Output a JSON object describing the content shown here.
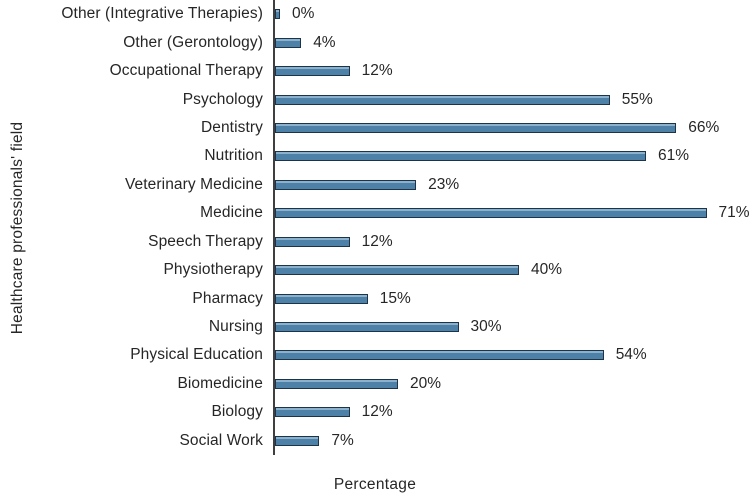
{
  "chart_data": {
    "type": "bar",
    "orientation": "horizontal",
    "title": "",
    "xlabel": "Percentage",
    "ylabel": "Healthcare professionals' field",
    "categories": [
      "Other (Integrative Therapies)",
      "Other (Gerontology)",
      "Occupational Therapy",
      "Psychology",
      "Dentistry",
      "Nutrition",
      "Veterinary Medicine",
      "Medicine",
      "Speech Therapy",
      "Physiotherapy",
      "Pharmacy",
      "Nursing",
      "Physical Education",
      "Biomedicine",
      "Biology",
      "Social Work"
    ],
    "values": [
      0,
      4,
      12,
      55,
      66,
      61,
      23,
      71,
      12,
      40,
      15,
      30,
      54,
      20,
      12,
      7
    ],
    "data_labels": [
      "0%",
      "4%",
      "12%",
      "55%",
      "66%",
      "61%",
      "23%",
      "71%",
      "12%",
      "40%",
      "15%",
      "30%",
      "54%",
      "20%",
      "12%",
      "7%"
    ],
    "xlim": [
      0,
      79
    ],
    "grid": false,
    "legend": null,
    "bar_fill_color": "#4e81a8",
    "bar_border_color": "#1d3347",
    "axis_line_color": "#3f3f3f",
    "text_color": "#262626"
  }
}
